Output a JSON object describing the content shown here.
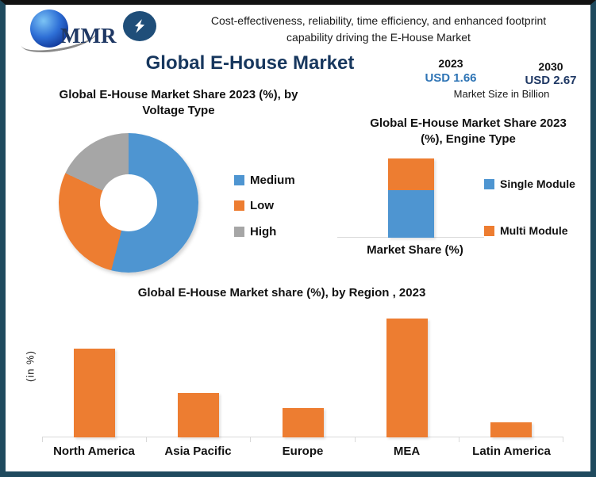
{
  "frame": {
    "border_color": "#1F4A5E"
  },
  "header": {
    "logo_text": "MMR",
    "tagline_lines": [
      "Cost-effectiveness, reliability, time efficiency, and enhanced footprint",
      "capability driving the E-House Market"
    ],
    "title": "Global E-House Market"
  },
  "market_size": {
    "year_start": "2023",
    "value_start": "USD 1.66",
    "value_start_color": "#2E74B5",
    "year_end": "2030",
    "value_end": "USD 2.67",
    "value_end_color": "#1F3864",
    "caption": "Market Size in Billion"
  },
  "chart_data": [
    {
      "id": "voltage-donut",
      "type": "pie",
      "subtype": "donut",
      "title": "Global E-House Market Share 2023 (%), by Voltage Type",
      "title_lines": [
        "Global E-House Market Share 2023 (%), by",
        "Voltage Type"
      ],
      "categories": [
        "Medium",
        "Low",
        "High"
      ],
      "values": [
        54,
        28,
        18
      ],
      "colors": [
        "#4E95D1",
        "#ED7D31",
        "#A6A6A6"
      ],
      "legend_position": "right"
    },
    {
      "id": "engine-stacked-bar",
      "type": "bar",
      "subtype": "stacked-single-column",
      "title": "Global  E-House Market Share 2023 (%), Engine Type",
      "title_lines": [
        "Global  E-House Market Share 2023",
        "(%), Engine Type"
      ],
      "xlabel": "Market Share (%)",
      "series": [
        {
          "name": "Single Module",
          "value": 60,
          "color": "#4E95D1"
        },
        {
          "name": "Multi Module",
          "value": 40,
          "color": "#ED7D31"
        }
      ],
      "legend_position": "right"
    },
    {
      "id": "region-bar",
      "type": "bar",
      "title": "Global E-House  Market share (%), by Region , 2023",
      "ylabel": "(in %)",
      "categories": [
        "North America",
        "Asia Pacific",
        "Europe",
        "MEA",
        "Latin America"
      ],
      "values": [
        30,
        15,
        10,
        40,
        5
      ],
      "bar_color": "#ED7D31",
      "grid": false,
      "ylim": [
        0,
        45
      ]
    }
  ]
}
